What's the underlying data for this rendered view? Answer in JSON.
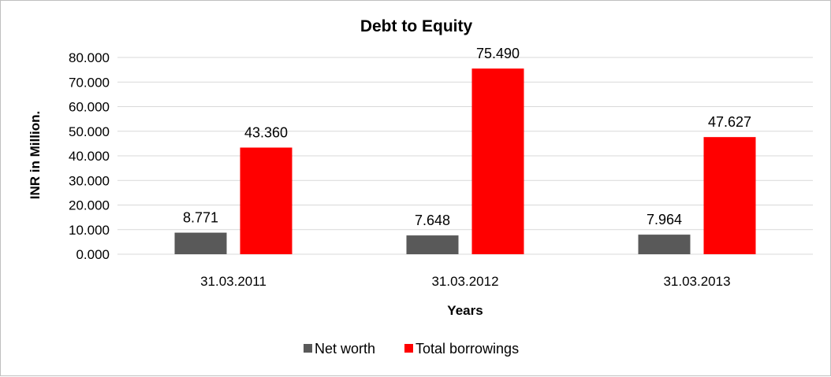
{
  "chart_data": {
    "type": "bar",
    "title": "Debt to Equity",
    "xlabel": "Years",
    "ylabel": "INR in Million.",
    "categories": [
      "31.03.2011",
      "31.03.2012",
      "31.03.2013"
    ],
    "series": [
      {
        "name": "Net worth",
        "values": [
          8.771,
          7.648,
          7.964
        ],
        "labels": [
          "8.771",
          "7.648",
          "7.964"
        ],
        "color": "#595959"
      },
      {
        "name": "Total borrowings",
        "values": [
          43.36,
          75.49,
          47.627
        ],
        "labels": [
          "43.360",
          "75.490",
          "47.627"
        ],
        "color": "#ff0000"
      }
    ],
    "ylim": [
      0,
      80
    ],
    "yticks": [
      0,
      10,
      20,
      30,
      40,
      50,
      60,
      70,
      80
    ],
    "ytick_labels": [
      "0.000",
      "10.000",
      "20.000",
      "30.000",
      "40.000",
      "50.000",
      "60.000",
      "70.000",
      "80.000"
    ],
    "grid": true,
    "legend_position": "bottom"
  }
}
